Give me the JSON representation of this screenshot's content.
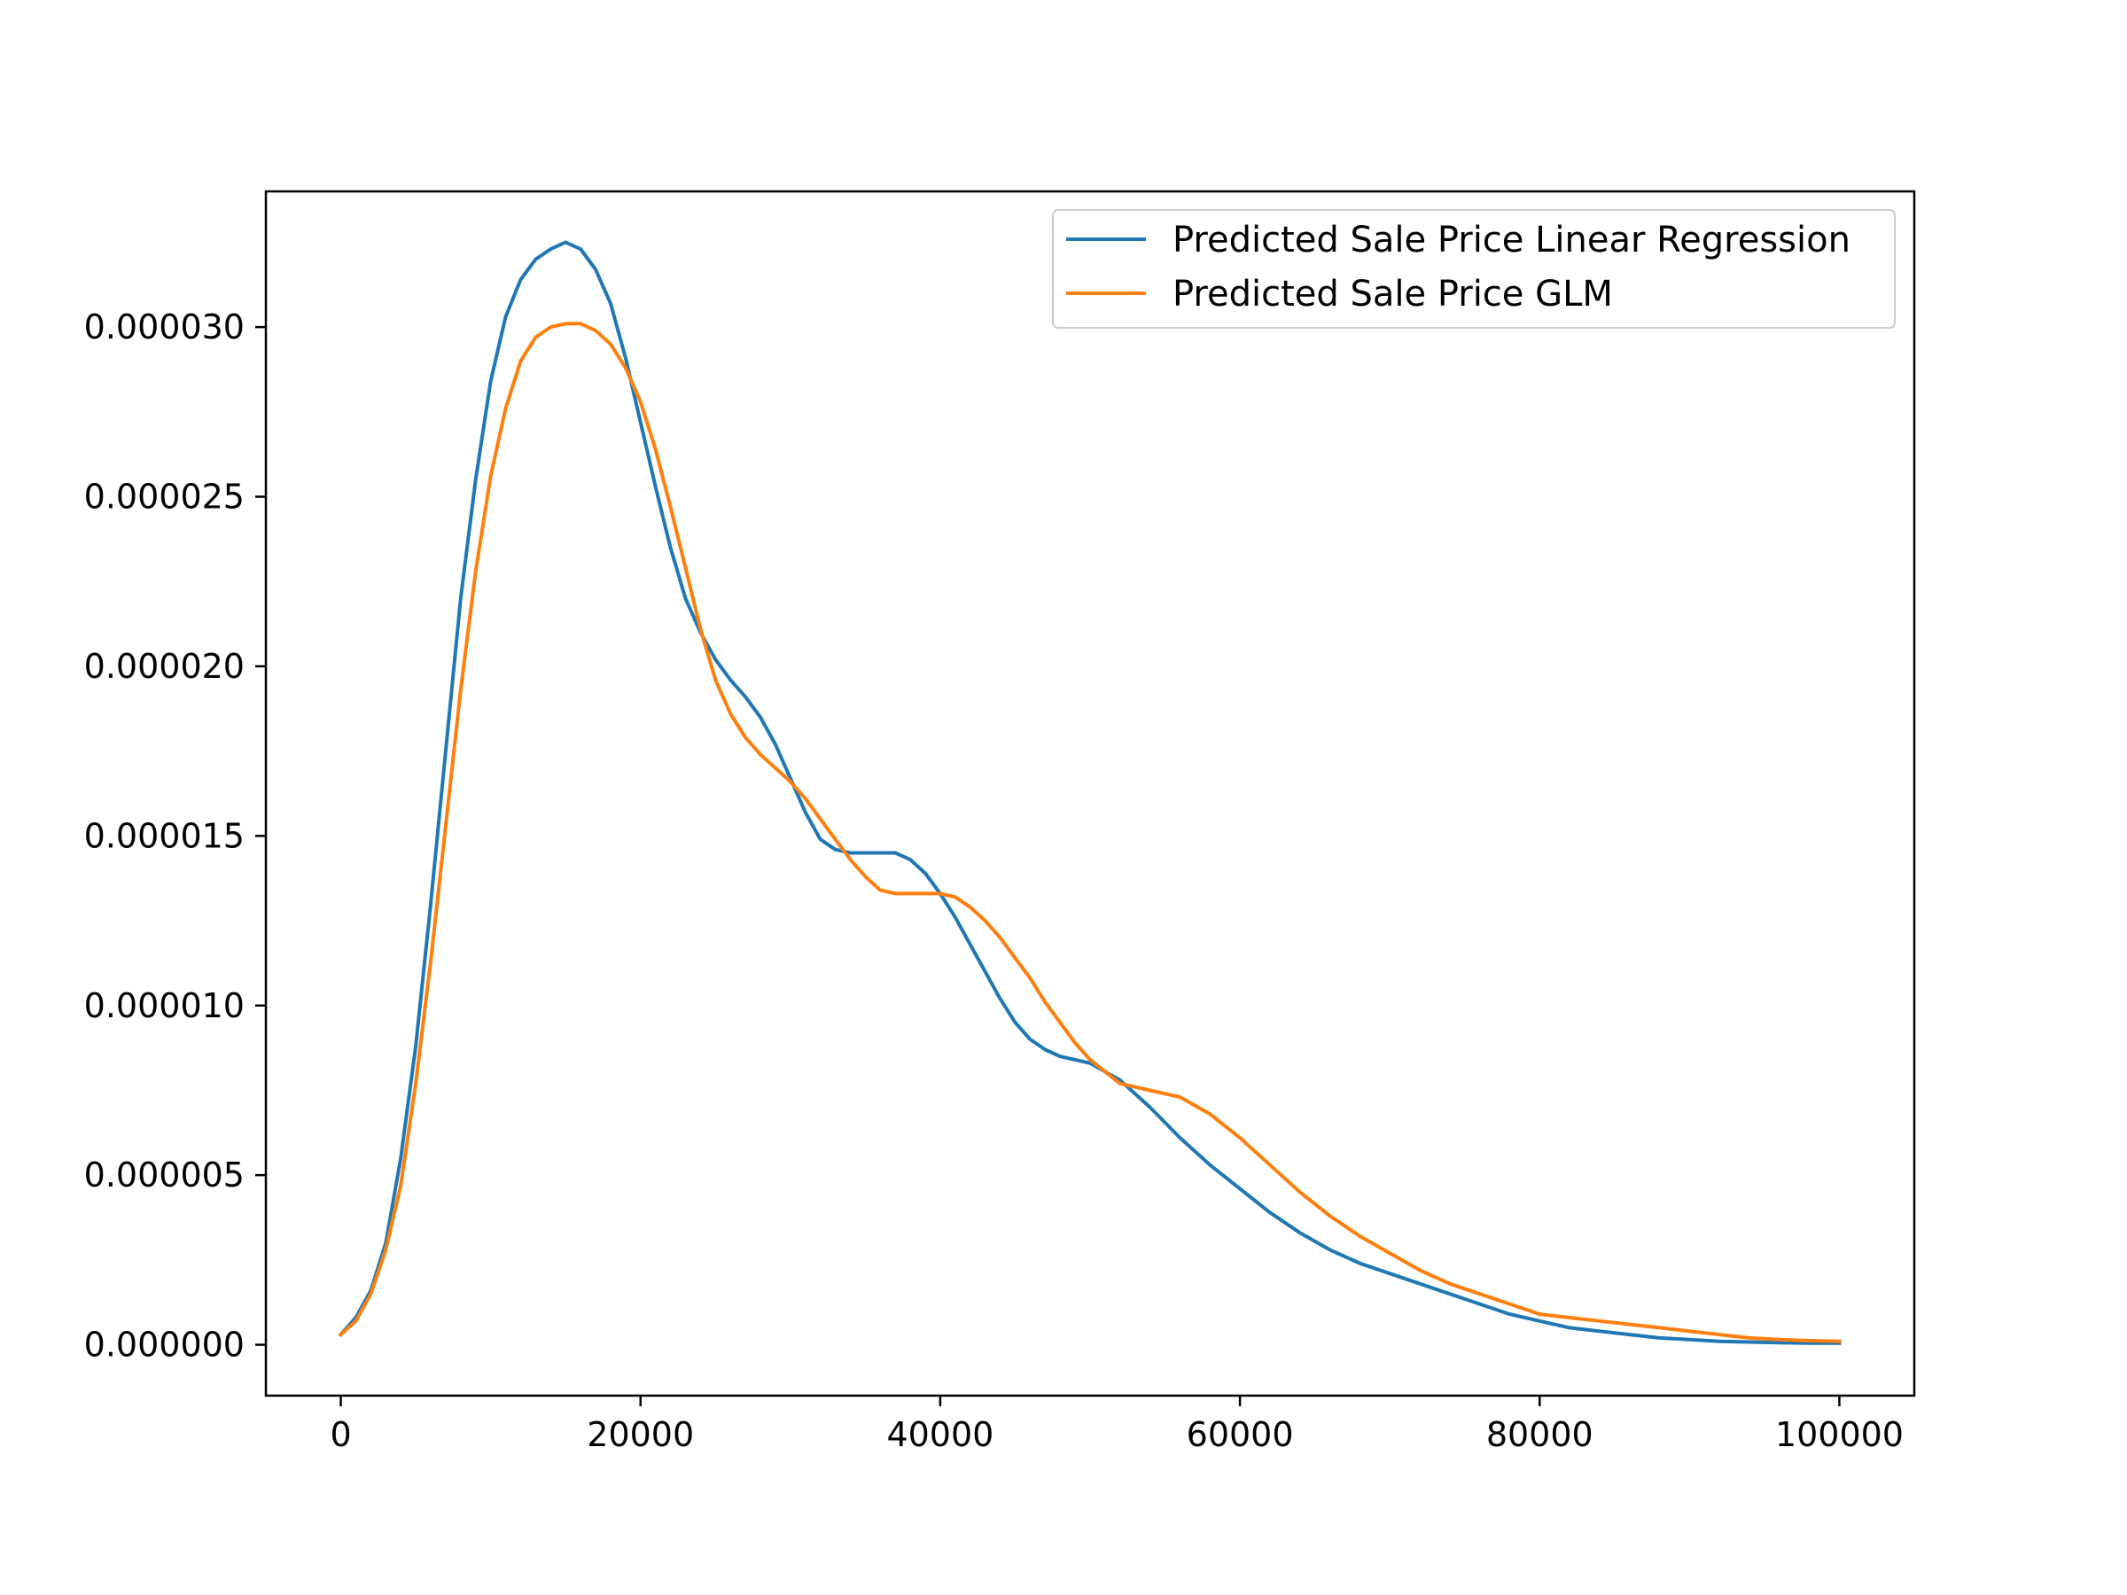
{
  "chart_data": {
    "type": "line",
    "title": "",
    "xlabel": "",
    "ylabel": "",
    "xlim": [
      -5000,
      105000
    ],
    "ylim": [
      -1.5e-06,
      3.4e-05
    ],
    "x_ticks": [
      0,
      20000,
      40000,
      60000,
      80000,
      100000
    ],
    "x_tick_labels": [
      "0",
      "20000",
      "40000",
      "60000",
      "80000",
      "100000"
    ],
    "y_ticks": [
      0.0,
      5e-06,
      1e-05,
      1.5e-05,
      2e-05,
      2.5e-05,
      3e-05
    ],
    "y_tick_labels": [
      "0.000000",
      "0.000005",
      "0.000010",
      "0.000015",
      "0.000020",
      "0.000025",
      "0.000030"
    ],
    "grid": false,
    "legend_position": "upper right",
    "series": [
      {
        "name": "Predicted Sale Price Linear Regression",
        "color": "#1f77b4",
        "x": [
          0,
          1000,
          2000,
          3000,
          4000,
          5000,
          6000,
          7000,
          8000,
          9000,
          10000,
          11000,
          12000,
          13000,
          14000,
          15000,
          16000,
          17000,
          18000,
          19000,
          20000,
          21000,
          22000,
          23000,
          24000,
          25000,
          26000,
          27000,
          28000,
          29000,
          30000,
          31000,
          32000,
          33000,
          34000,
          35000,
          36000,
          37000,
          38000,
          39000,
          40000,
          41000,
          42000,
          43000,
          44000,
          45000,
          46000,
          47000,
          48000,
          49000,
          50000,
          52000,
          54000,
          56000,
          58000,
          60000,
          62000,
          64000,
          66000,
          68000,
          70000,
          72000,
          74000,
          76000,
          78000,
          80000,
          82000,
          84000,
          86000,
          88000,
          90000,
          92000,
          94000,
          96000,
          98000,
          100000
        ],
        "values": [
          3e-07,
          8e-07,
          1.6e-06,
          3e-06,
          5.5e-06,
          8.8e-06,
          1.3e-05,
          1.75e-05,
          2.2e-05,
          2.55e-05,
          2.84e-05,
          3.03e-05,
          3.14e-05,
          3.2e-05,
          3.23e-05,
          3.25e-05,
          3.23e-05,
          3.17e-05,
          3.07e-05,
          2.91e-05,
          2.72e-05,
          2.53e-05,
          2.35e-05,
          2.2e-05,
          2.1e-05,
          2.02e-05,
          1.96e-05,
          1.91e-05,
          1.85e-05,
          1.77e-05,
          1.67e-05,
          1.57e-05,
          1.49e-05,
          1.46e-05,
          1.45e-05,
          1.45e-05,
          1.45e-05,
          1.45e-05,
          1.43e-05,
          1.39e-05,
          1.33e-05,
          1.26e-05,
          1.18e-05,
          1.1e-05,
          1.02e-05,
          9.5e-06,
          9e-06,
          8.7e-06,
          8.5e-06,
          8.4e-06,
          8.3e-06,
          7.8e-06,
          7e-06,
          6.1e-06,
          5.3e-06,
          4.6e-06,
          3.9e-06,
          3.3e-06,
          2.8e-06,
          2.4e-06,
          2.1e-06,
          1.8e-06,
          1.5e-06,
          1.2e-06,
          9e-07,
          7e-07,
          5e-07,
          4e-07,
          3e-07,
          2e-07,
          1.5e-07,
          1e-07,
          8e-08,
          6e-08,
          5e-08,
          5e-08
        ]
      },
      {
        "name": "Predicted Sale Price GLM",
        "color": "#ff7f0e",
        "x": [
          0,
          1000,
          2000,
          3000,
          4000,
          5000,
          6000,
          7000,
          8000,
          9000,
          10000,
          11000,
          12000,
          13000,
          14000,
          15000,
          16000,
          17000,
          18000,
          19000,
          20000,
          21000,
          22000,
          23000,
          24000,
          25000,
          26000,
          27000,
          28000,
          29000,
          30000,
          31000,
          32000,
          33000,
          34000,
          35000,
          36000,
          37000,
          38000,
          39000,
          40000,
          41000,
          42000,
          43000,
          44000,
          45000,
          46000,
          47000,
          48000,
          49000,
          50000,
          52000,
          54000,
          56000,
          58000,
          60000,
          62000,
          64000,
          66000,
          68000,
          70000,
          72000,
          74000,
          76000,
          78000,
          80000,
          82000,
          84000,
          86000,
          88000,
          90000,
          92000,
          94000,
          96000,
          98000,
          100000
        ],
        "values": [
          3e-07,
          7e-07,
          1.5e-06,
          2.8e-06,
          4.7e-06,
          7.7e-06,
          1.13e-05,
          1.53e-05,
          1.93e-05,
          2.28e-05,
          2.56e-05,
          2.76e-05,
          2.9e-05,
          2.97e-05,
          3e-05,
          3.01e-05,
          3.01e-05,
          2.99e-05,
          2.95e-05,
          2.88e-05,
          2.78e-05,
          2.64e-05,
          2.47e-05,
          2.29e-05,
          2.11e-05,
          1.96e-05,
          1.86e-05,
          1.79e-05,
          1.74e-05,
          1.7e-05,
          1.66e-05,
          1.61e-05,
          1.55e-05,
          1.49e-05,
          1.43e-05,
          1.38e-05,
          1.34e-05,
          1.33e-05,
          1.33e-05,
          1.33e-05,
          1.33e-05,
          1.32e-05,
          1.29e-05,
          1.25e-05,
          1.2e-05,
          1.14e-05,
          1.08e-05,
          1.01e-05,
          9.5e-06,
          8.9e-06,
          8.4e-06,
          7.7e-06,
          7.5e-06,
          7.3e-06,
          6.8e-06,
          6.1e-06,
          5.3e-06,
          4.5e-06,
          3.8e-06,
          3.2e-06,
          2.7e-06,
          2.2e-06,
          1.8e-06,
          1.5e-06,
          1.2e-06,
          9e-07,
          8e-07,
          7e-07,
          6e-07,
          5e-07,
          4e-07,
          3e-07,
          2e-07,
          1.5e-07,
          1.2e-07,
          1e-07
        ]
      }
    ]
  }
}
